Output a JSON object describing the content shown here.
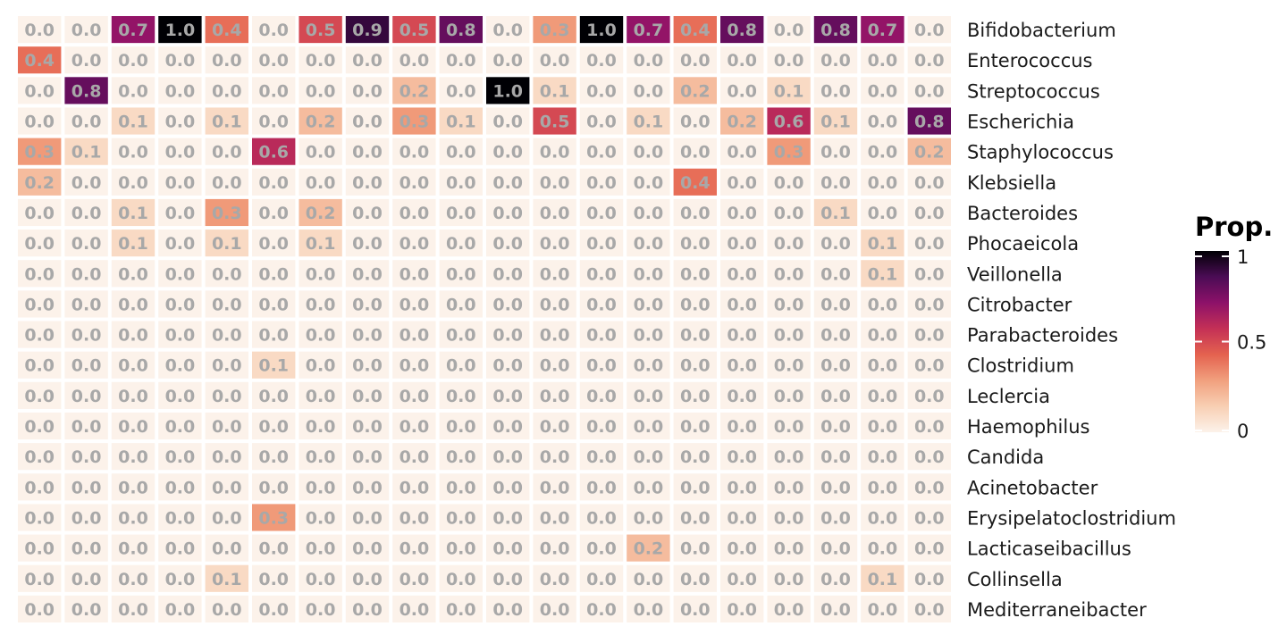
{
  "chart_data": {
    "type": "heatmap",
    "title": "",
    "xlabel": "",
    "ylabel": "",
    "rows": [
      "Bifidobacterium",
      "Enterococcus",
      "Streptococcus",
      "Escherichia",
      "Staphylococcus",
      "Klebsiella",
      "Bacteroides",
      "Phocaeicola",
      "Veillonella",
      "Citrobacter",
      "Parabacteroides",
      "Clostridium",
      "Leclercia",
      "Haemophilus",
      "Candida",
      "Acinetobacter",
      "Erysipelatoclostridium",
      "Lacticaseibacillus",
      "Collinsella",
      "Mediterraneibacter"
    ],
    "n_columns": 20,
    "values": [
      [
        0.0,
        0.0,
        0.7,
        1.0,
        0.4,
        0.0,
        0.5,
        0.9,
        0.5,
        0.8,
        0.0,
        0.3,
        1.0,
        0.7,
        0.4,
        0.8,
        0.0,
        0.8,
        0.7,
        0.0
      ],
      [
        0.4,
        0.0,
        0.0,
        0.0,
        0.0,
        0.0,
        0.0,
        0.0,
        0.0,
        0.0,
        0.0,
        0.0,
        0.0,
        0.0,
        0.0,
        0.0,
        0.0,
        0.0,
        0.0,
        0.0
      ],
      [
        0.0,
        0.8,
        0.0,
        0.0,
        0.0,
        0.0,
        0.0,
        0.0,
        0.2,
        0.0,
        1.0,
        0.1,
        0.0,
        0.0,
        0.2,
        0.0,
        0.1,
        0.0,
        0.0,
        0.0
      ],
      [
        0.0,
        0.0,
        0.1,
        0.0,
        0.1,
        0.0,
        0.2,
        0.0,
        0.3,
        0.1,
        0.0,
        0.5,
        0.0,
        0.1,
        0.0,
        0.2,
        0.6,
        0.1,
        0.0,
        0.8
      ],
      [
        0.3,
        0.1,
        0.0,
        0.0,
        0.0,
        0.6,
        0.0,
        0.0,
        0.0,
        0.0,
        0.0,
        0.0,
        0.0,
        0.0,
        0.0,
        0.0,
        0.3,
        0.0,
        0.0,
        0.2
      ],
      [
        0.2,
        0.0,
        0.0,
        0.0,
        0.0,
        0.0,
        0.0,
        0.0,
        0.0,
        0.0,
        0.0,
        0.0,
        0.0,
        0.0,
        0.4,
        0.0,
        0.0,
        0.0,
        0.0,
        0.0
      ],
      [
        0.0,
        0.0,
        0.1,
        0.0,
        0.3,
        0.0,
        0.2,
        0.0,
        0.0,
        0.0,
        0.0,
        0.0,
        0.0,
        0.0,
        0.0,
        0.0,
        0.0,
        0.1,
        0.0,
        0.0
      ],
      [
        0.0,
        0.0,
        0.1,
        0.0,
        0.1,
        0.0,
        0.1,
        0.0,
        0.0,
        0.0,
        0.0,
        0.0,
        0.0,
        0.0,
        0.0,
        0.0,
        0.0,
        0.0,
        0.1,
        0.0
      ],
      [
        0.0,
        0.0,
        0.0,
        0.0,
        0.0,
        0.0,
        0.0,
        0.0,
        0.0,
        0.0,
        0.0,
        0.0,
        0.0,
        0.0,
        0.0,
        0.0,
        0.0,
        0.0,
        0.1,
        0.0
      ],
      [
        0.0,
        0.0,
        0.0,
        0.0,
        0.0,
        0.0,
        0.0,
        0.0,
        0.0,
        0.0,
        0.0,
        0.0,
        0.0,
        0.0,
        0.0,
        0.0,
        0.0,
        0.0,
        0.0,
        0.0
      ],
      [
        0.0,
        0.0,
        0.0,
        0.0,
        0.0,
        0.0,
        0.0,
        0.0,
        0.0,
        0.0,
        0.0,
        0.0,
        0.0,
        0.0,
        0.0,
        0.0,
        0.0,
        0.0,
        0.0,
        0.0
      ],
      [
        0.0,
        0.0,
        0.0,
        0.0,
        0.0,
        0.1,
        0.0,
        0.0,
        0.0,
        0.0,
        0.0,
        0.0,
        0.0,
        0.0,
        0.0,
        0.0,
        0.0,
        0.0,
        0.0,
        0.0
      ],
      [
        0.0,
        0.0,
        0.0,
        0.0,
        0.0,
        0.0,
        0.0,
        0.0,
        0.0,
        0.0,
        0.0,
        0.0,
        0.0,
        0.0,
        0.0,
        0.0,
        0.0,
        0.0,
        0.0,
        0.0
      ],
      [
        0.0,
        0.0,
        0.0,
        0.0,
        0.0,
        0.0,
        0.0,
        0.0,
        0.0,
        0.0,
        0.0,
        0.0,
        0.0,
        0.0,
        0.0,
        0.0,
        0.0,
        0.0,
        0.0,
        0.0
      ],
      [
        0.0,
        0.0,
        0.0,
        0.0,
        0.0,
        0.0,
        0.0,
        0.0,
        0.0,
        0.0,
        0.0,
        0.0,
        0.0,
        0.0,
        0.0,
        0.0,
        0.0,
        0.0,
        0.0,
        0.0
      ],
      [
        0.0,
        0.0,
        0.0,
        0.0,
        0.0,
        0.0,
        0.0,
        0.0,
        0.0,
        0.0,
        0.0,
        0.0,
        0.0,
        0.0,
        0.0,
        0.0,
        0.0,
        0.0,
        0.0,
        0.0
      ],
      [
        0.0,
        0.0,
        0.0,
        0.0,
        0.0,
        0.3,
        0.0,
        0.0,
        0.0,
        0.0,
        0.0,
        0.0,
        0.0,
        0.0,
        0.0,
        0.0,
        0.0,
        0.0,
        0.0,
        0.0
      ],
      [
        0.0,
        0.0,
        0.0,
        0.0,
        0.0,
        0.0,
        0.0,
        0.0,
        0.0,
        0.0,
        0.0,
        0.0,
        0.0,
        0.2,
        0.0,
        0.0,
        0.0,
        0.0,
        0.0,
        0.0
      ],
      [
        0.0,
        0.0,
        0.0,
        0.0,
        0.1,
        0.0,
        0.0,
        0.0,
        0.0,
        0.0,
        0.0,
        0.0,
        0.0,
        0.0,
        0.0,
        0.0,
        0.0,
        0.0,
        0.1,
        0.0
      ],
      [
        0.0,
        0.0,
        0.0,
        0.0,
        0.0,
        0.0,
        0.0,
        0.0,
        0.0,
        0.0,
        0.0,
        0.0,
        0.0,
        0.0,
        0.0,
        0.0,
        0.0,
        0.0,
        0.0,
        0.0
      ]
    ],
    "value_range": [
      0,
      1
    ],
    "legend": {
      "title": "Prop.",
      "position": "right",
      "ticks": [
        0,
        0.5,
        1
      ],
      "tick_labels": [
        "0",
        "0.5",
        "1"
      ]
    },
    "colors": {
      "scale": [
        "#fcf2ea",
        "#f8cfb3",
        "#f1a07e",
        "#e4624f",
        "#c43056",
        "#8d1169",
        "#4b0c55",
        "#000004"
      ],
      "cell_text": "#a8a8a8",
      "label_text": "#1a1a1a"
    }
  }
}
